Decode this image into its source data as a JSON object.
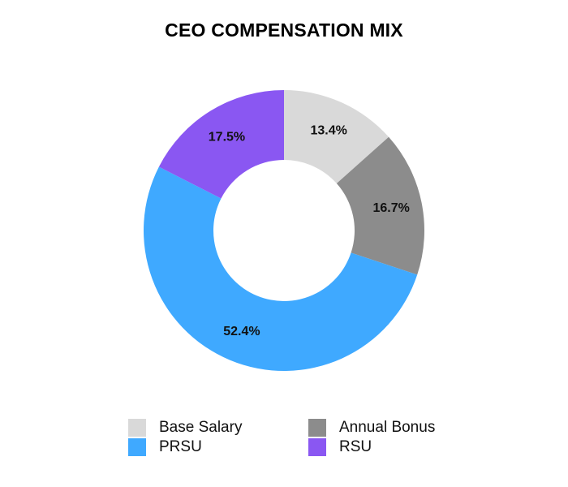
{
  "chart_data": {
    "type": "pie",
    "title": "CEO COMPENSATION MIX",
    "donut": true,
    "legend_position": "bottom",
    "slices": [
      {
        "name": "Base Salary",
        "value": 13.4,
        "label": "13.4%",
        "color": "#d9d9d9"
      },
      {
        "name": "Annual Bonus",
        "value": 16.7,
        "label": "16.7%",
        "color": "#8c8c8c"
      },
      {
        "name": "PRSU",
        "value": 52.4,
        "label": "52.4%",
        "color": "#3fa9ff"
      },
      {
        "name": "RSU",
        "value": 17.5,
        "label": "17.5%",
        "color": "#8a57f2"
      }
    ]
  }
}
